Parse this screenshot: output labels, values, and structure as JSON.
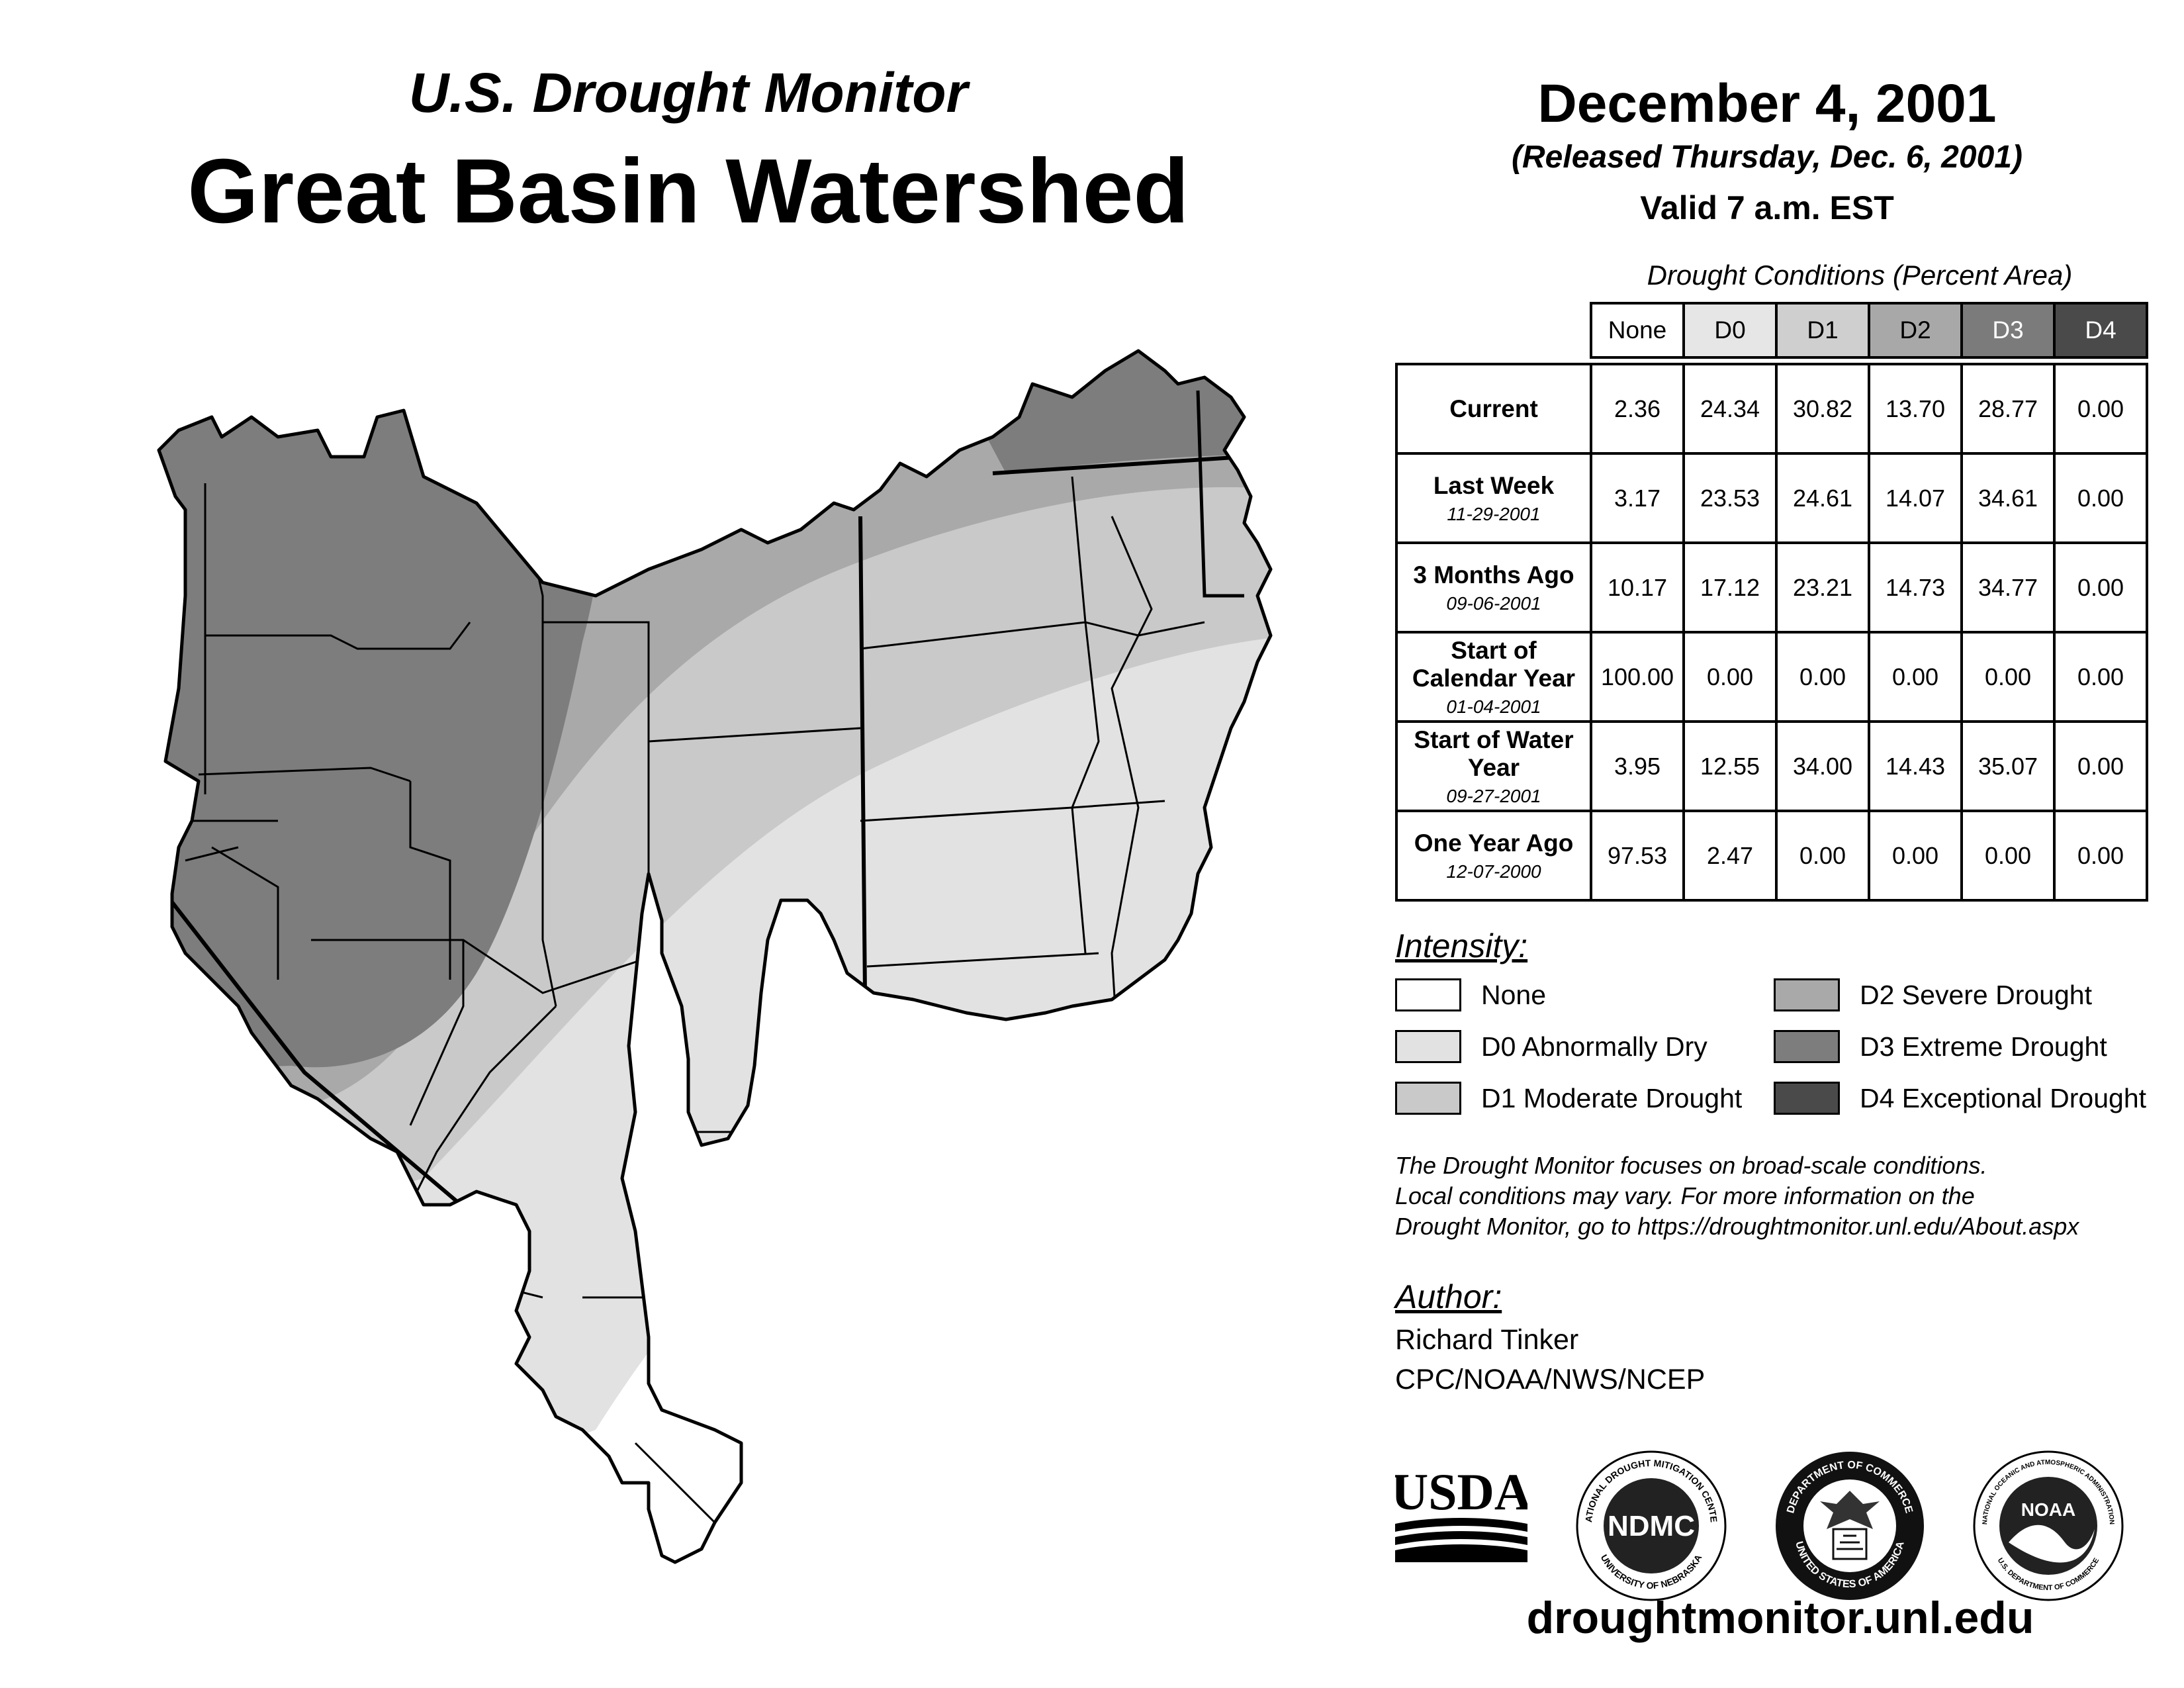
{
  "header": {
    "subtitle": "U.S. Drought Monitor",
    "title": "Great Basin Watershed",
    "date": "December 4, 2001",
    "released": "(Released Thursday, Dec. 6, 2001)",
    "valid": "Valid 7 a.m. EST"
  },
  "table": {
    "caption": "Drought Conditions (Percent Area)",
    "columns": [
      "None",
      "D0",
      "D1",
      "D2",
      "D3",
      "D4"
    ],
    "rows": [
      {
        "label": "Current",
        "date": "",
        "values": [
          "2.36",
          "24.34",
          "30.82",
          "13.70",
          "28.77",
          "0.00"
        ]
      },
      {
        "label": "Last Week",
        "date": "11-29-2001",
        "values": [
          "3.17",
          "23.53",
          "24.61",
          "14.07",
          "34.61",
          "0.00"
        ]
      },
      {
        "label": "3 Months Ago",
        "date": "09-06-2001",
        "values": [
          "10.17",
          "17.12",
          "23.21",
          "14.73",
          "34.77",
          "0.00"
        ]
      },
      {
        "label": "Start of Calendar Year",
        "date": "01-04-2001",
        "values": [
          "100.00",
          "0.00",
          "0.00",
          "0.00",
          "0.00",
          "0.00"
        ]
      },
      {
        "label": "Start of Water Year",
        "date": "09-27-2001",
        "values": [
          "3.95",
          "12.55",
          "34.00",
          "14.43",
          "35.07",
          "0.00"
        ]
      },
      {
        "label": "One Year Ago",
        "date": "12-07-2000",
        "values": [
          "97.53",
          "2.47",
          "0.00",
          "0.00",
          "0.00",
          "0.00"
        ]
      }
    ]
  },
  "legend": {
    "title": "Intensity:",
    "items": [
      {
        "label": "None",
        "color": "#ffffff"
      },
      {
        "label": "D0 Abnormally Dry",
        "color": "#e2e2e2"
      },
      {
        "label": "D1 Moderate Drought",
        "color": "#c9c9c9"
      },
      {
        "label": "D2 Severe Drought",
        "color": "#a9a9a9"
      },
      {
        "label": "D3 Extreme Drought",
        "color": "#7d7d7d"
      },
      {
        "label": "D4 Exceptional Drought",
        "color": "#4a4a4a"
      }
    ]
  },
  "colors": {
    "header_none": "#ffffff",
    "header_d0": "#e6e6e6",
    "header_d1": "#cfcfcf",
    "header_d2": "#a8a8a8",
    "header_d3": "#7b7b7b",
    "header_d4": "#4a4a4a",
    "map_d0": "#e2e2e2",
    "map_d1": "#c9c9c9",
    "map_d2": "#a9a9a9",
    "map_d3": "#7d7d7d"
  },
  "disclaimer": {
    "line1": "The Drought Monitor focuses on broad-scale conditions.",
    "line2": "Local conditions may vary. For more information on the",
    "line3": "Drought Monitor, go to https://droughtmonitor.unl.edu/About.aspx"
  },
  "author": {
    "title": "Author:",
    "name": "Richard Tinker",
    "org": "CPC/NOAA/NWS/NCEP"
  },
  "logos": {
    "usda": "USDA",
    "ndmc": "NDMC",
    "ndmc_top": "NATIONAL DROUGHT MITIGATION CENTER",
    "ndmc_bottom": "UNIVERSITY OF NEBRASKA",
    "doc_top": "DEPARTMENT OF COMMERCE",
    "doc_bottom": "UNITED STATES OF AMERICA",
    "noaa": "NOAA",
    "noaa_top": "NATIONAL OCEANIC AND ATMOSPHERIC ADMINISTRATION",
    "noaa_bottom": "U.S. DEPARTMENT OF COMMERCE"
  },
  "website": "droughtmonitor.unl.edu"
}
